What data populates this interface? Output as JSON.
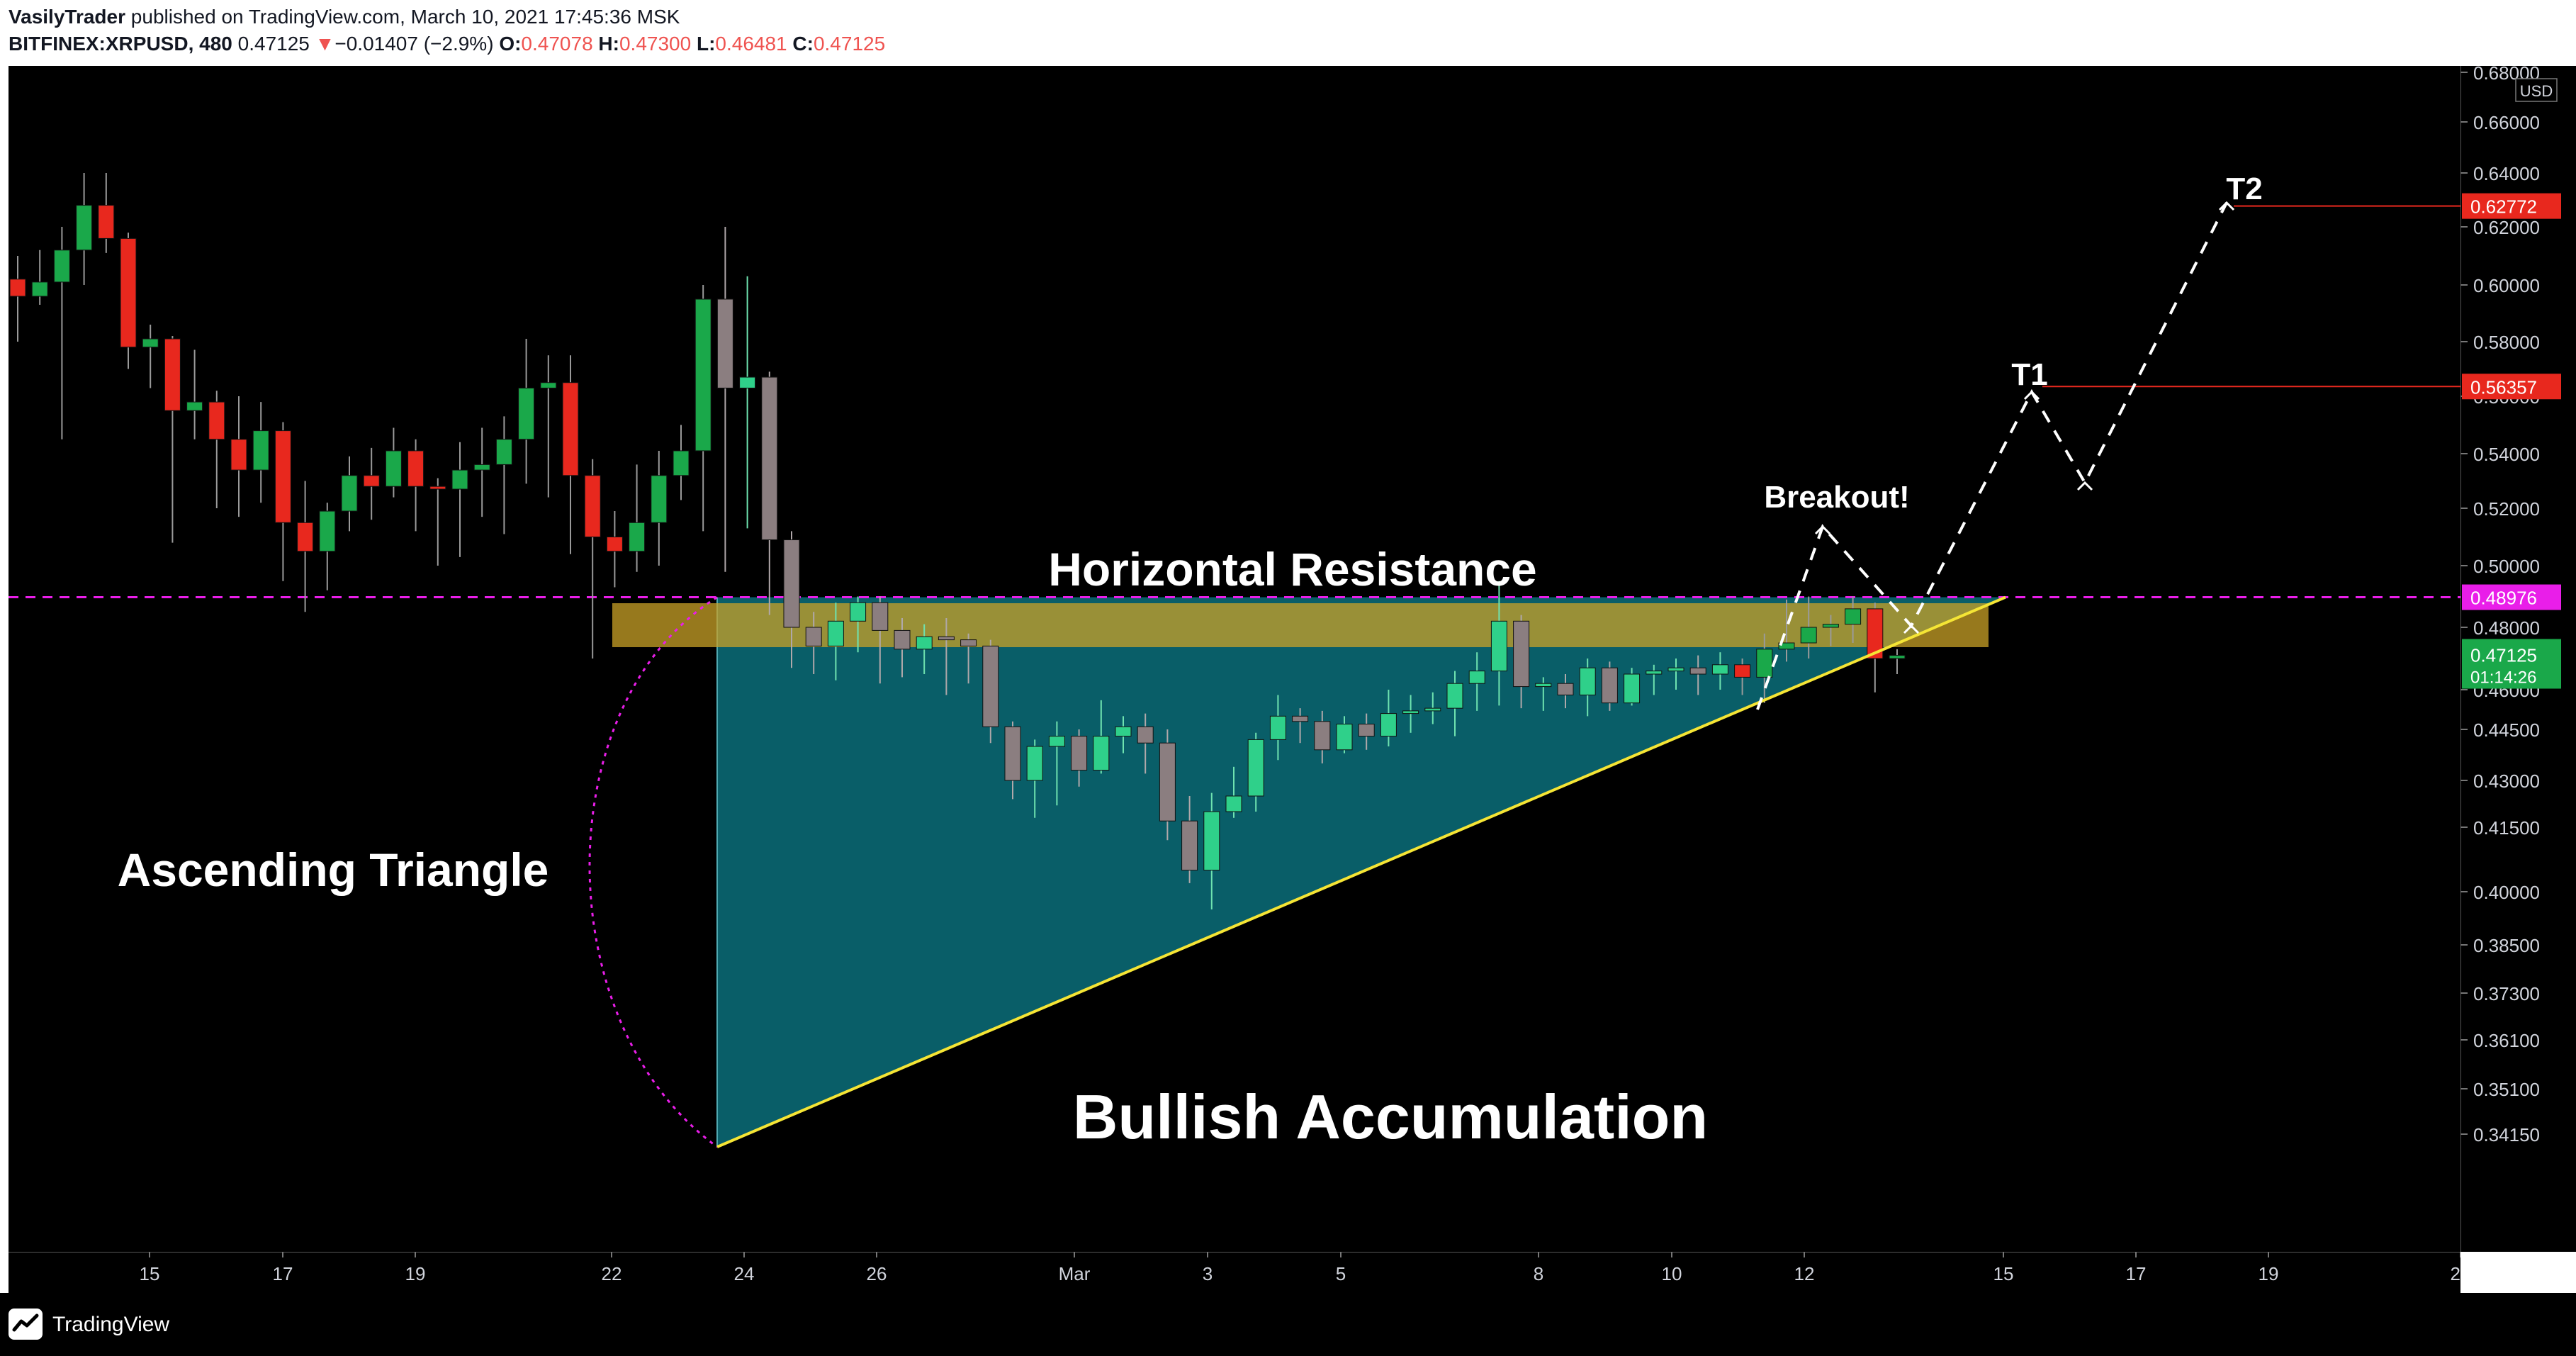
{
  "header": {
    "author": "VasilyTrader",
    "published_text": "published on TradingView.com, March 10, 2021 17:45:36 MSK",
    "symbol": "BITFINEX:XRPUSD, 480",
    "last": "0.47125",
    "change_arrow": "▼",
    "change": "−0.01407 (−2.9%)",
    "o_label": "O:",
    "o_value": "0.47078",
    "h_label": "H:",
    "h_value": "0.47300",
    "l_label": "L:",
    "l_value": "0.46481",
    "c_label": "C:",
    "c_value": "0.47125"
  },
  "footer": {
    "brand": "TradingView"
  },
  "colors": {
    "up": "#26a69a",
    "up_body": "#1aa84a",
    "down_body": "#e8281e",
    "triangle_fill": "#0a6e7a",
    "resistance_zone": "#c9a227",
    "support_line": "#f5e535",
    "dashed_level": "#e91ee9",
    "t_line": "#e8281e"
  },
  "chart_data": {
    "type": "candlestick",
    "currency": "USD",
    "y_ticks": [
      "0.68000",
      "0.66000",
      "0.64000",
      "0.62000",
      "0.60000",
      "0.58000",
      "0.56000",
      "0.54000",
      "0.52000",
      "0.50000",
      "0.48000",
      "0.46000",
      "0.44500",
      "0.43000",
      "0.41500",
      "0.40000",
      "0.38500",
      "0.37300",
      "0.36100",
      "0.35100",
      "0.34150"
    ],
    "x_ticks": [
      "15",
      "17",
      "19",
      "22",
      "24",
      "26",
      "Mar",
      "3",
      "5",
      "8",
      "10",
      "12",
      "15",
      "17",
      "19",
      "2"
    ],
    "price_labels": [
      {
        "value": "0.62772",
        "kind": "T2"
      },
      {
        "value": "0.56357",
        "kind": "T1"
      },
      {
        "value": "0.48976",
        "kind": "level"
      },
      {
        "value": "0.47125",
        "kind": "last",
        "timer": "01:14:26"
      }
    ],
    "annotations": {
      "resistance": "Horizontal Resistance",
      "pattern": "Ascending Triangle",
      "accumulation": "Bullish Accumulation",
      "breakout": "Breakout!",
      "t1": "T1",
      "t2": "T2"
    },
    "levels": {
      "resistance": 0.48976,
      "t1": 0.56357,
      "t2": 0.62772
    },
    "candles": [
      [
        0.602,
        0.596,
        0.61,
        0.58,
        "d"
      ],
      [
        0.596,
        0.601,
        0.612,
        0.593,
        "u"
      ],
      [
        0.601,
        0.612,
        0.62,
        0.545,
        "u"
      ],
      [
        0.612,
        0.628,
        0.64,
        0.6,
        "u"
      ],
      [
        0.628,
        0.616,
        0.64,
        0.611,
        "d"
      ],
      [
        0.616,
        0.578,
        0.618,
        0.57,
        "d"
      ],
      [
        0.578,
        0.581,
        0.586,
        0.563,
        "u"
      ],
      [
        0.581,
        0.555,
        0.582,
        0.508,
        "d"
      ],
      [
        0.555,
        0.558,
        0.577,
        0.545,
        "u"
      ],
      [
        0.558,
        0.545,
        0.562,
        0.52,
        "d"
      ],
      [
        0.545,
        0.534,
        0.56,
        0.517,
        "d"
      ],
      [
        0.534,
        0.548,
        0.558,
        0.522,
        "u"
      ],
      [
        0.548,
        0.515,
        0.551,
        0.495,
        "d"
      ],
      [
        0.515,
        0.505,
        0.53,
        0.485,
        "d"
      ],
      [
        0.505,
        0.519,
        0.522,
        0.492,
        "u"
      ],
      [
        0.519,
        0.532,
        0.539,
        0.512,
        "u"
      ],
      [
        0.532,
        0.528,
        0.542,
        0.516,
        "d"
      ],
      [
        0.528,
        0.541,
        0.549,
        0.524,
        "u"
      ],
      [
        0.541,
        0.528,
        0.545,
        0.512,
        "d"
      ],
      [
        0.528,
        0.527,
        0.531,
        0.5,
        "d"
      ],
      [
        0.527,
        0.534,
        0.544,
        0.503,
        "u"
      ],
      [
        0.534,
        0.536,
        0.549,
        0.517,
        "u"
      ],
      [
        0.536,
        0.545,
        0.553,
        0.511,
        "u"
      ],
      [
        0.545,
        0.563,
        0.581,
        0.529,
        "u"
      ],
      [
        0.563,
        0.565,
        0.575,
        0.524,
        "u"
      ],
      [
        0.565,
        0.532,
        0.575,
        0.504,
        "d"
      ],
      [
        0.532,
        0.51,
        0.538,
        0.47,
        "d"
      ],
      [
        0.51,
        0.505,
        0.519,
        0.493,
        "d"
      ],
      [
        0.505,
        0.515,
        0.536,
        0.498,
        "u"
      ],
      [
        0.515,
        0.532,
        0.541,
        0.5,
        "u"
      ],
      [
        0.532,
        0.541,
        0.55,
        0.523,
        "u"
      ],
      [
        0.541,
        0.595,
        0.6,
        0.512,
        "u"
      ],
      [
        0.595,
        0.563,
        0.62,
        0.498,
        "d"
      ],
      [
        0.563,
        0.567,
        0.603,
        0.513,
        "u"
      ],
      [
        0.567,
        0.509,
        0.569,
        0.484,
        "d"
      ],
      [
        0.509,
        0.48,
        0.512,
        0.467,
        "d"
      ],
      [
        0.48,
        0.474,
        0.485,
        0.465,
        "d"
      ],
      [
        0.474,
        0.482,
        0.488,
        0.463,
        "u"
      ],
      [
        0.482,
        0.488,
        0.49,
        0.472,
        "u"
      ],
      [
        0.488,
        0.479,
        0.49,
        0.462,
        "d"
      ],
      [
        0.479,
        0.473,
        0.483,
        0.464,
        "d"
      ],
      [
        0.473,
        0.477,
        0.481,
        0.465,
        "u"
      ],
      [
        0.477,
        0.476,
        0.483,
        0.458,
        "d"
      ],
      [
        0.476,
        0.474,
        0.478,
        0.462,
        "d"
      ],
      [
        0.474,
        0.446,
        0.476,
        0.441,
        "d"
      ],
      [
        0.446,
        0.43,
        0.448,
        0.424,
        "d"
      ],
      [
        0.43,
        0.44,
        0.442,
        0.418,
        "u"
      ],
      [
        0.44,
        0.443,
        0.448,
        0.422,
        "u"
      ],
      [
        0.443,
        0.433,
        0.445,
        0.428,
        "d"
      ],
      [
        0.433,
        0.443,
        0.456,
        0.432,
        "u"
      ],
      [
        0.443,
        0.446,
        0.45,
        0.438,
        "u"
      ],
      [
        0.446,
        0.441,
        0.451,
        0.432,
        "d"
      ],
      [
        0.441,
        0.417,
        0.445,
        0.412,
        "d"
      ],
      [
        0.417,
        0.405,
        0.425,
        0.402,
        "d"
      ],
      [
        0.405,
        0.42,
        0.426,
        0.395,
        "u"
      ],
      [
        0.42,
        0.425,
        0.434,
        0.418,
        "u"
      ],
      [
        0.425,
        0.442,
        0.444,
        0.42,
        "u"
      ],
      [
        0.442,
        0.45,
        0.458,
        0.436,
        "u"
      ],
      [
        0.45,
        0.448,
        0.453,
        0.441,
        "d"
      ],
      [
        0.448,
        0.439,
        0.452,
        0.435,
        "d"
      ],
      [
        0.439,
        0.447,
        0.45,
        0.438,
        "u"
      ],
      [
        0.447,
        0.443,
        0.451,
        0.439,
        "d"
      ],
      [
        0.443,
        0.451,
        0.46,
        0.44,
        "u"
      ],
      [
        0.451,
        0.452,
        0.458,
        0.444,
        "u"
      ],
      [
        0.452,
        0.453,
        0.459,
        0.447,
        "u"
      ],
      [
        0.453,
        0.462,
        0.466,
        0.443,
        "u"
      ],
      [
        0.462,
        0.466,
        0.472,
        0.452,
        "u"
      ],
      [
        0.466,
        0.482,
        0.495,
        0.454,
        "u"
      ],
      [
        0.482,
        0.461,
        0.484,
        0.453,
        "d"
      ],
      [
        0.461,
        0.462,
        0.464,
        0.452,
        "u"
      ],
      [
        0.462,
        0.458,
        0.465,
        0.453,
        "d"
      ],
      [
        0.458,
        0.467,
        0.47,
        0.45,
        "u"
      ],
      [
        0.467,
        0.455,
        0.469,
        0.452,
        "d"
      ],
      [
        0.455,
        0.465,
        0.467,
        0.454,
        "u"
      ],
      [
        0.465,
        0.466,
        0.468,
        0.458,
        "u"
      ],
      [
        0.466,
        0.467,
        0.47,
        0.46,
        "u"
      ],
      [
        0.467,
        0.465,
        0.471,
        0.458,
        "d"
      ],
      [
        0.465,
        0.468,
        0.472,
        0.46,
        "u"
      ],
      [
        0.468,
        0.464,
        0.47,
        0.458,
        "d"
      ],
      [
        0.464,
        0.473,
        0.478,
        0.455,
        "u"
      ],
      [
        0.473,
        0.475,
        0.489,
        0.469,
        "u"
      ],
      [
        0.475,
        0.48,
        0.49,
        0.47,
        "u"
      ],
      [
        0.48,
        0.481,
        0.484,
        0.474,
        "u"
      ],
      [
        0.481,
        0.486,
        0.49,
        0.475,
        "u"
      ],
      [
        0.486,
        0.47,
        0.488,
        0.459,
        "d"
      ],
      [
        0.47,
        0.471,
        0.473,
        0.465,
        "u"
      ]
    ]
  }
}
